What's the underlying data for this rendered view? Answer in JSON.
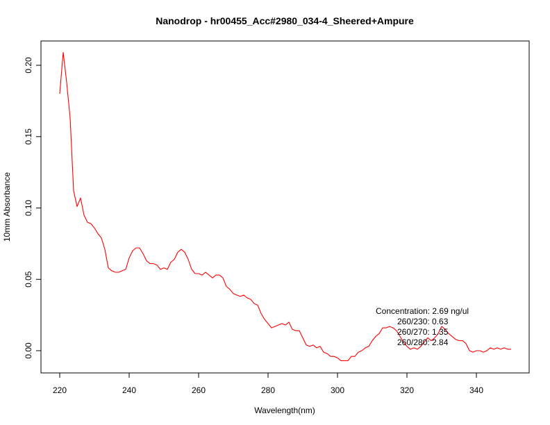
{
  "chart_data": {
    "type": "line",
    "title": "Nanodrop - hr00455_Acc#2980_034-4_Sheered+Ampure",
    "xlabel": "Wavelength(nm)",
    "ylabel": "10mm Absorbance",
    "xlim": [
      220,
      350
    ],
    "ylim": [
      0.0,
      0.21
    ],
    "xticks": [
      220,
      240,
      260,
      280,
      300,
      320,
      340
    ],
    "xtick_labels": [
      "220",
      "240",
      "260",
      "280",
      "300",
      "320",
      "340"
    ],
    "yticks": [
      0.0,
      0.05,
      0.1,
      0.15,
      0.2
    ],
    "ytick_labels": [
      "0.00",
      "0.05",
      "0.10",
      "0.15",
      "0.20"
    ],
    "grid": false,
    "series_color": "#ff0000",
    "series": [
      {
        "x": [
          220,
          221,
          222,
          223,
          224,
          225,
          226,
          227,
          228,
          229,
          230,
          231,
          232,
          233,
          234,
          235,
          236,
          237,
          238,
          239,
          240,
          241,
          242,
          243,
          244,
          245,
          246,
          247,
          248,
          249,
          250,
          251,
          252,
          253,
          254,
          255,
          256,
          257,
          258,
          259,
          260,
          261,
          262,
          263,
          264,
          265,
          266,
          267,
          268,
          269,
          270,
          271,
          272,
          273,
          274,
          275,
          276,
          277,
          278,
          279,
          280,
          281,
          282,
          283,
          284,
          285,
          286,
          287,
          288,
          289,
          290,
          291,
          292,
          293,
          294,
          295,
          296,
          297,
          298,
          299,
          300,
          301,
          302,
          303,
          304,
          305,
          306,
          307,
          308,
          309,
          310,
          311,
          312,
          313,
          314,
          315,
          316,
          317,
          318,
          319,
          320,
          321,
          322,
          323,
          324,
          325,
          326,
          327,
          328,
          329,
          330,
          331,
          332,
          333,
          334,
          335,
          336,
          337,
          338,
          339,
          340,
          341,
          342,
          343,
          344,
          345,
          346,
          347,
          348,
          349,
          350
        ],
        "y": [
          0.18,
          0.209,
          0.188,
          0.163,
          0.112,
          0.101,
          0.107,
          0.095,
          0.09,
          0.089,
          0.086,
          0.082,
          0.079,
          0.071,
          0.058,
          0.056,
          0.055,
          0.055,
          0.056,
          0.057,
          0.065,
          0.07,
          0.072,
          0.072,
          0.068,
          0.063,
          0.061,
          0.061,
          0.06,
          0.057,
          0.058,
          0.057,
          0.062,
          0.064,
          0.069,
          0.071,
          0.069,
          0.064,
          0.057,
          0.054,
          0.054,
          0.053,
          0.055,
          0.053,
          0.051,
          0.053,
          0.053,
          0.051,
          0.045,
          0.043,
          0.04,
          0.039,
          0.038,
          0.039,
          0.037,
          0.036,
          0.033,
          0.032,
          0.026,
          0.022,
          0.019,
          0.016,
          0.017,
          0.018,
          0.019,
          0.018,
          0.02,
          0.015,
          0.014,
          0.014,
          0.009,
          0.004,
          0.003,
          0.004,
          0.002,
          0.003,
          -0.001,
          -0.002,
          -0.004,
          -0.004,
          -0.005,
          -0.007,
          -0.007,
          -0.007,
          -0.004,
          -0.004,
          -0.001,
          0.0,
          0.002,
          0.003,
          0.007,
          0.01,
          0.012,
          0.016,
          0.016,
          0.017,
          0.016,
          0.014,
          0.01,
          0.006,
          0.003,
          0.001,
          0.002,
          0.001,
          0.003,
          0.006,
          0.009,
          0.007,
          0.009,
          0.012,
          0.017,
          0.015,
          0.012,
          0.01,
          0.008,
          0.007,
          0.007,
          0.005,
          0.0,
          -0.001,
          0.0,
          0.0,
          -0.001,
          0.0,
          0.002,
          0.001,
          0.002,
          0.001,
          0.002,
          0.001,
          0.001
        ]
      }
    ],
    "annotation": [
      "Concentration: 2.69 ng/ul",
      "260/230: 0.63",
      "260/270: 1.35",
      "260/280: 2.84"
    ]
  }
}
